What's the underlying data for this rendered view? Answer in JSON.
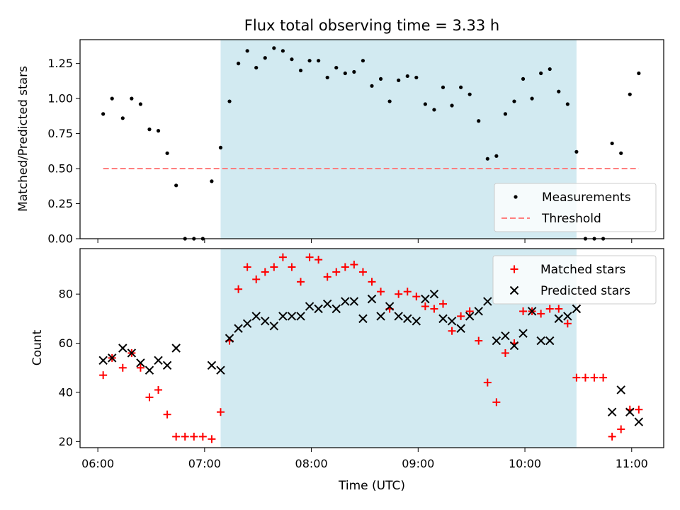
{
  "chart_data": {
    "type": "scatter",
    "title": "Flux total observing time = 3.33 h",
    "xlabel": "Time (UTC)",
    "x_tick_labels": [
      "06:00",
      "07:00",
      "08:00",
      "09:00",
      "10:00",
      "11:00"
    ],
    "x_range": [
      "05:50",
      "11:18"
    ],
    "shaded_interval": [
      "07:09",
      "10:29"
    ],
    "colors": {
      "shade": "#add8e6",
      "matched": "#ff0000",
      "predicted": "#000000",
      "threshold": "#ff7f7f",
      "measure": "#000000"
    },
    "panels": [
      {
        "ylabel": "Matched/Predicted stars",
        "ylim": [
          0,
          1.42
        ],
        "yticks": [
          0,
          0.25,
          0.5,
          0.75,
          1.0,
          1.25
        ],
        "ytick_labels": [
          "0.00",
          "0.25",
          "0.50",
          "0.75",
          "1.00",
          "1.25"
        ],
        "legend_position": "lower-right",
        "legend": [
          "Measurements",
          "Threshold"
        ],
        "series": [
          {
            "name": "Measurements",
            "kind": "dot",
            "x": [
              "06:03",
              "06:08",
              "06:14",
              "06:19",
              "06:24",
              "06:29",
              "06:34",
              "06:39",
              "06:44",
              "06:49",
              "06:54",
              "06:59",
              "07:04",
              "07:09",
              "07:14",
              "07:19",
              "07:24",
              "07:29",
              "07:34",
              "07:39",
              "07:44",
              "07:49",
              "07:54",
              "07:59",
              "08:04",
              "08:09",
              "08:14",
              "08:19",
              "08:24",
              "08:29",
              "08:34",
              "08:39",
              "08:44",
              "08:49",
              "08:54",
              "08:59",
              "09:04",
              "09:09",
              "09:14",
              "09:19",
              "09:24",
              "09:29",
              "09:34",
              "09:39",
              "09:44",
              "09:49",
              "09:54",
              "09:59",
              "10:04",
              "10:09",
              "10:14",
              "10:19",
              "10:24",
              "10:29",
              "10:34",
              "10:39",
              "10:44",
              "10:49",
              "10:54",
              "10:59",
              "11:04"
            ],
            "y": [
              0.89,
              1.0,
              0.86,
              1.0,
              0.96,
              0.78,
              0.77,
              0.61,
              0.38,
              0.0,
              0.0,
              0.0,
              0.41,
              0.65,
              0.98,
              1.25,
              1.34,
              1.22,
              1.29,
              1.36,
              1.34,
              1.28,
              1.2,
              1.27,
              1.27,
              1.15,
              1.22,
              1.18,
              1.19,
              1.27,
              1.09,
              1.14,
              0.98,
              1.13,
              1.16,
              1.15,
              0.96,
              0.92,
              1.08,
              0.95,
              1.08,
              1.03,
              0.84,
              0.57,
              0.59,
              0.89,
              0.98,
              1.14,
              1.0,
              1.18,
              1.21,
              1.05,
              0.96,
              0.62,
              0.0,
              0.0,
              0.0,
              0.68,
              0.61,
              1.03,
              1.18
            ]
          },
          {
            "name": "Threshold",
            "kind": "dashed-line",
            "x": [
              "06:03",
              "11:04"
            ],
            "y": [
              0.5,
              0.5
            ]
          }
        ]
      },
      {
        "ylabel": "Count",
        "ylim": [
          17.5,
          98.5
        ],
        "yticks": [
          20,
          40,
          60,
          80
        ],
        "ytick_labels": [
          "20",
          "40",
          "60",
          "80"
        ],
        "legend_position": "upper-right",
        "legend": [
          "Matched stars",
          "Predicted stars"
        ],
        "series": [
          {
            "name": "Matched stars",
            "kind": "plus",
            "x": [
              "06:03",
              "06:08",
              "06:14",
              "06:19",
              "06:24",
              "06:29",
              "06:34",
              "06:39",
              "06:44",
              "06:49",
              "06:54",
              "06:59",
              "07:04",
              "07:09",
              "07:14",
              "07:19",
              "07:24",
              "07:29",
              "07:34",
              "07:39",
              "07:44",
              "07:49",
              "07:54",
              "07:59",
              "08:04",
              "08:09",
              "08:14",
              "08:19",
              "08:24",
              "08:29",
              "08:34",
              "08:39",
              "08:44",
              "08:49",
              "08:54",
              "08:59",
              "09:04",
              "09:09",
              "09:14",
              "09:19",
              "09:24",
              "09:29",
              "09:34",
              "09:39",
              "09:44",
              "09:49",
              "09:54",
              "09:59",
              "10:04",
              "10:09",
              "10:14",
              "10:19",
              "10:24",
              "10:29",
              "10:34",
              "10:39",
              "10:44",
              "10:49",
              "10:54",
              "10:59",
              "11:04"
            ],
            "y": [
              47,
              54,
              50,
              56,
              50,
              38,
              41,
              31,
              22,
              22,
              22,
              22,
              21,
              32,
              61,
              82,
              91,
              86,
              89,
              91,
              95,
              91,
              85,
              95,
              94,
              87,
              89,
              91,
              92,
              89,
              85,
              81,
              74,
              80,
              81,
              79,
              75,
              74,
              76,
              65,
              71,
              73,
              61,
              44,
              36,
              56,
              60,
              73,
              73,
              72,
              74,
              74,
              68,
              46,
              46,
              46,
              46,
              22,
              25,
              33,
              33
            ]
          },
          {
            "name": "Predicted stars",
            "kind": "cross",
            "x": [
              "06:03",
              "06:08",
              "06:14",
              "06:19",
              "06:24",
              "06:29",
              "06:34",
              "06:39",
              "06:44",
              "07:04",
              "07:09",
              "07:14",
              "07:19",
              "07:24",
              "07:29",
              "07:34",
              "07:39",
              "07:44",
              "07:49",
              "07:54",
              "07:59",
              "08:04",
              "08:09",
              "08:14",
              "08:19",
              "08:24",
              "08:29",
              "08:34",
              "08:39",
              "08:44",
              "08:49",
              "08:54",
              "08:59",
              "09:04",
              "09:09",
              "09:14",
              "09:19",
              "09:24",
              "09:29",
              "09:34",
              "09:39",
              "09:44",
              "09:49",
              "09:54",
              "09:59",
              "10:04",
              "10:09",
              "10:14",
              "10:19",
              "10:24",
              "10:29",
              "10:49",
              "10:54",
              "10:59",
              "11:04"
            ],
            "y": [
              53,
              54,
              58,
              56,
              52,
              49,
              53,
              51,
              58,
              51,
              49,
              62,
              66,
              68,
              71,
              69,
              67,
              71,
              71,
              71,
              75,
              74,
              76,
              74,
              77,
              77,
              70,
              78,
              71,
              75,
              71,
              70,
              69,
              78,
              80,
              70,
              69,
              66,
              71,
              73,
              77,
              61,
              63,
              59,
              64,
              73,
              61,
              61,
              70,
              71,
              74,
              32,
              41,
              32,
              28
            ]
          }
        ]
      }
    ]
  }
}
